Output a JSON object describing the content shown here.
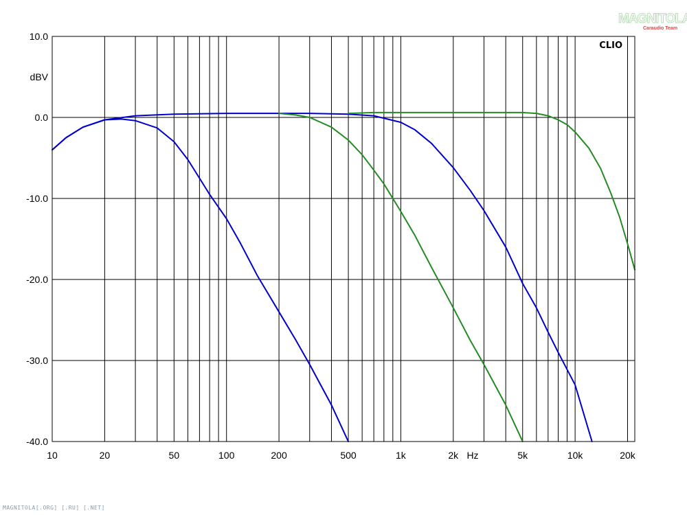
{
  "watermark": {
    "logo_text": "MAGNITOLA",
    "logo_sub": "Caraudio Team",
    "footer": "MAGNITOLA[.ORG] [.RU] [.NET]"
  },
  "chart_data": {
    "type": "line",
    "brand": "CLIO",
    "ylabel": "dBV",
    "xlabel": "Hz",
    "xscale": "log",
    "xlim": [
      10,
      22000
    ],
    "ylim": [
      -40,
      10
    ],
    "grid": true,
    "y_tick_labels": [
      "10.0",
      "0.0",
      "-10.0",
      "-20.0",
      "-30.0",
      "-40.0"
    ],
    "y_tick_values": [
      10,
      0,
      -10,
      -20,
      -30,
      -40
    ],
    "x_tick_labels": [
      "10",
      "20",
      "50",
      "100",
      "200",
      "500",
      "1k",
      "2k",
      "5k",
      "10k",
      "20k"
    ],
    "x_tick_values": [
      10,
      20,
      50,
      100,
      200,
      500,
      1000,
      2000,
      5000,
      10000,
      20000
    ],
    "series": [
      {
        "color": "#0000cc",
        "x": [
          10,
          12,
          15,
          20,
          25,
          30,
          40,
          50,
          60,
          70,
          80,
          100,
          120,
          150,
          200,
          250,
          300,
          400,
          500
        ],
        "y": [
          -4,
          -2.5,
          -1.2,
          -0.3,
          -0.2,
          -0.4,
          -1.3,
          -3.0,
          -5.2,
          -7.5,
          -9.5,
          -12.5,
          -15.5,
          -19.5,
          -24,
          -27.5,
          -30.5,
          -35.5,
          -40
        ]
      },
      {
        "color": "#0000cc",
        "x": [
          10,
          12,
          15,
          20,
          30,
          50,
          100,
          200,
          300,
          500,
          700,
          1000,
          1200,
          1500,
          2000,
          2500,
          3000,
          4000,
          5000,
          6000,
          7000,
          8000,
          10000,
          12500
        ],
        "y": [
          -4,
          -2.5,
          -1.2,
          -0.3,
          0.2,
          0.4,
          0.5,
          0.5,
          0.5,
          0.4,
          0.2,
          -0.6,
          -1.5,
          -3.2,
          -6.2,
          -9.0,
          -11.5,
          -16.0,
          -20.5,
          -23.5,
          -26.5,
          -29.0,
          -33.0,
          -40
        ]
      },
      {
        "color": "#228b22",
        "x": [
          200,
          250,
          300,
          400,
          500,
          600,
          700,
          800,
          1000,
          1200,
          1500,
          2000,
          2500,
          3000,
          4000,
          5000
        ],
        "y": [
          0.5,
          0.3,
          0,
          -1.2,
          -2.8,
          -4.6,
          -6.5,
          -8.2,
          -11.6,
          -14.5,
          -18.5,
          -23.5,
          -27.5,
          -30.5,
          -35.5,
          -40
        ]
      },
      {
        "color": "#228b22",
        "x": [
          500,
          700,
          1000,
          2000,
          3000,
          4000,
          5000,
          6000,
          7000,
          8000,
          9000,
          10000,
          12000,
          14000,
          16000,
          18000,
          20000,
          22000
        ],
        "y": [
          0.5,
          0.6,
          0.6,
          0.6,
          0.6,
          0.6,
          0.6,
          0.5,
          0.2,
          -0.3,
          -0.9,
          -1.8,
          -3.8,
          -6.3,
          -9.3,
          -12.3,
          -15.6,
          -18.8
        ]
      }
    ]
  }
}
